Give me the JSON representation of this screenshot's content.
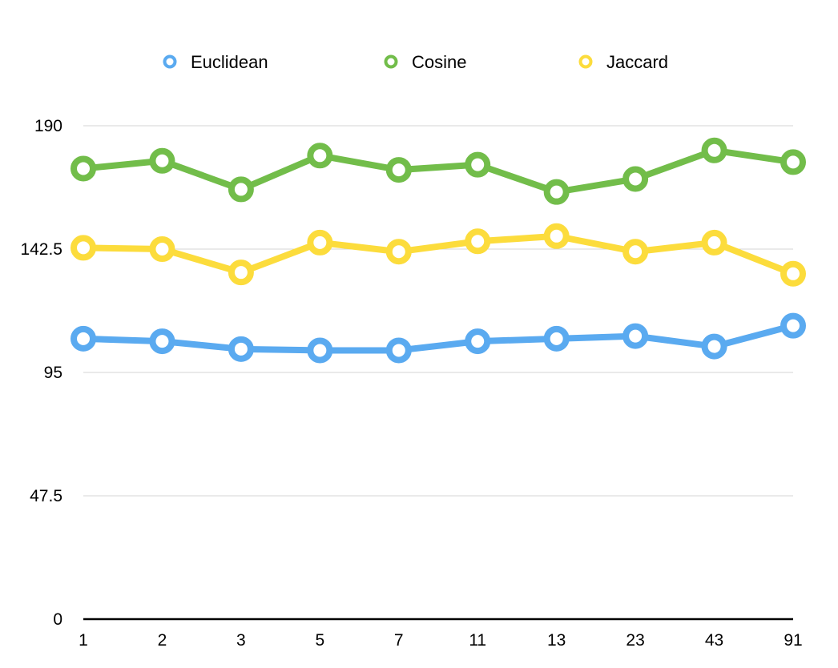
{
  "chart_data": {
    "type": "line",
    "categories": [
      "1",
      "2",
      "3",
      "5",
      "7",
      "11",
      "13",
      "23",
      "43",
      "91"
    ],
    "series": [
      {
        "name": "Euclidean",
        "color": "#5aaaf0",
        "values": [
          108,
          107,
          104,
          103.5,
          103.5,
          107,
          108,
          109,
          105,
          113
        ]
      },
      {
        "name": "Cosine",
        "color": "#72bd4a",
        "values": [
          173.5,
          176.5,
          165.5,
          178.5,
          173,
          175,
          164.5,
          169.5,
          180.5,
          176
        ]
      },
      {
        "name": "Jaccard",
        "color": "#fcdc3c",
        "values": [
          143,
          142.5,
          133.5,
          145,
          141.5,
          145.5,
          147.5,
          141.5,
          145,
          133
        ]
      }
    ],
    "y_ticks": [
      "0",
      "47.5",
      "95",
      "142.5",
      "190"
    ],
    "ylim": [
      0,
      190
    ],
    "grid": true,
    "legend_position": "top-center"
  }
}
